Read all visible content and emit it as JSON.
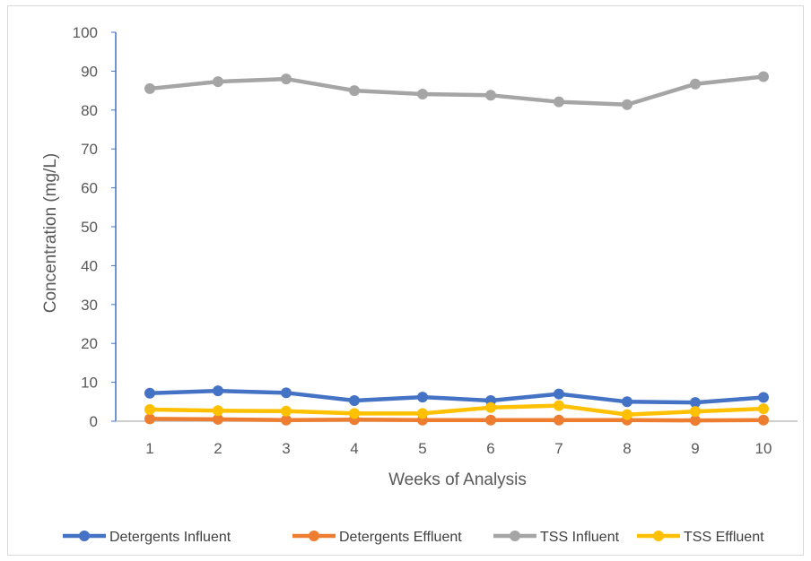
{
  "chart_data": {
    "type": "line",
    "title": "",
    "xlabel": "Weeks of Analysis",
    "ylabel": "Concentration (mg/L)",
    "x": [
      1,
      2,
      3,
      4,
      5,
      6,
      7,
      8,
      9,
      10
    ],
    "ylim": [
      0,
      100
    ],
    "yticks": [
      0,
      10,
      20,
      30,
      40,
      50,
      60,
      70,
      80,
      90,
      100
    ],
    "grid": false,
    "legend_position": "bottom",
    "series": [
      {
        "name": "Detergents Influent",
        "color": "#4472C4",
        "values": [
          7.2,
          7.8,
          7.3,
          5.3,
          6.2,
          5.3,
          7.0,
          5.0,
          4.8,
          6.1
        ]
      },
      {
        "name": "Detergents Effluent",
        "color": "#ED7D31",
        "values": [
          0.6,
          0.5,
          0.3,
          0.4,
          0.3,
          0.3,
          0.3,
          0.3,
          0.2,
          0.3
        ]
      },
      {
        "name": "TSS Influent",
        "color": "#A5A5A5",
        "values": [
          85.5,
          87.3,
          88.0,
          85.0,
          84.1,
          83.8,
          82.1,
          81.4,
          86.7,
          88.6
        ]
      },
      {
        "name": "TSS Effluent",
        "color": "#FFC000",
        "values": [
          3.0,
          2.7,
          2.6,
          2.0,
          2.0,
          3.5,
          4.0,
          1.7,
          2.5,
          3.2
        ]
      }
    ]
  }
}
